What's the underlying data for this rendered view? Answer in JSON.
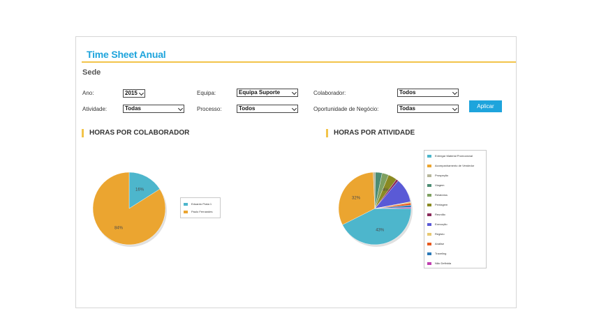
{
  "header": {
    "title": "Time Sheet Anual",
    "subtitle": "Sede"
  },
  "filters": {
    "ano": {
      "label": "Ano:",
      "value": "2015"
    },
    "equipa": {
      "label": "Equipa:",
      "value": "Equipa Suporte"
    },
    "colaborador": {
      "label": "Colaborador:",
      "value": "Todos"
    },
    "atividade": {
      "label": "Atividade:",
      "value": "Todas"
    },
    "processo": {
      "label": "Processo:",
      "value": "Todos"
    },
    "oportunidade": {
      "label": "Oportunidade de Negócio:",
      "value": "Todas"
    },
    "apply_label": "Aplicar"
  },
  "sections": {
    "colaborador_title": "HORAS POR COLABORADOR",
    "atividade_title": "HORAS POR ATIVIDADE"
  },
  "colors": {
    "accent": "#1ea4dc",
    "rule": "#f2c44a"
  },
  "chart_data": [
    {
      "type": "pie",
      "title": "HORAS POR COLABORADOR",
      "slices": [
        {
          "name": "Eduardo Prata 1",
          "value": 16,
          "label": "16%",
          "color": "#4db6cc"
        },
        {
          "name": "Paulo Fernandes",
          "value": 84,
          "label": "84%",
          "color": "#eba530"
        }
      ],
      "legend": "right"
    },
    {
      "type": "pie",
      "title": "HORAS POR ATIVIDADE",
      "slices": [
        {
          "name": "Entregar Material Promocional",
          "value": 43,
          "label": "43%",
          "color": "#4db6cc"
        },
        {
          "name": "Acompanhamento de Vendedor",
          "value": 32,
          "label": "32%",
          "color": "#eba530"
        },
        {
          "name": "Prospeção",
          "value": 1,
          "label": "",
          "color": "#b5b59a"
        },
        {
          "name": "Viagem",
          "value": 3,
          "label": "",
          "color": "#4c8c73"
        },
        {
          "name": "Relatórios",
          "value": 3,
          "label": "",
          "color": "#7ea060"
        },
        {
          "name": "Pentagem",
          "value": 4,
          "label": "4%",
          "color": "#8a8a22"
        },
        {
          "name": "Reunião",
          "value": 1,
          "label": "",
          "color": "#8a2a5a"
        },
        {
          "name": "Execução",
          "value": 11,
          "label": "",
          "color": "#5a5ad6"
        },
        {
          "name": "Registo",
          "value": 0.5,
          "label": "",
          "color": "#e8c870"
        },
        {
          "name": "Análise",
          "value": 1,
          "label": "",
          "color": "#e85a1e"
        },
        {
          "name": "Traveling",
          "value": 1,
          "label": "",
          "color": "#2a7ab8"
        },
        {
          "name": "Não Definida",
          "value": 0.5,
          "label": "",
          "color": "#c040b0"
        }
      ],
      "legend": "right"
    }
  ]
}
